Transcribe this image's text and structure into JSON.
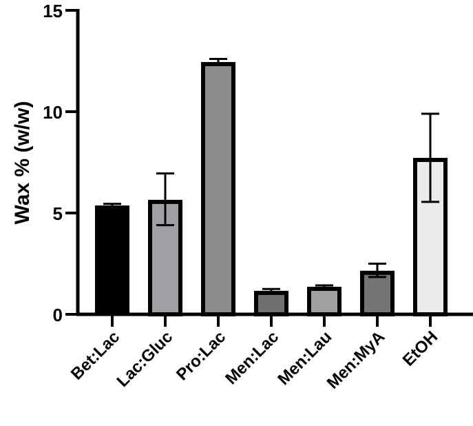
{
  "chart_data": {
    "type": "bar",
    "title": "",
    "xlabel": "",
    "ylabel": "Wax % (w/w)",
    "ylim": [
      0,
      15
    ],
    "yticks": [
      0,
      5,
      10,
      15
    ],
    "grid": false,
    "legend": null,
    "categories": [
      "Bet:Lac",
      "Lac:Gluc",
      "Pro:Lac",
      "Men:Lac",
      "Men:Lau",
      "Men:MyA",
      "EtOH"
    ],
    "values": [
      5.37,
      5.65,
      12.45,
      1.16,
      1.36,
      2.15,
      7.72
    ],
    "error_upper": [
      5.45,
      6.95,
      12.6,
      1.25,
      1.43,
      2.5,
      9.9
    ],
    "error_lower": [
      null,
      4.4,
      null,
      null,
      null,
      1.84,
      5.55
    ],
    "colors": [
      "#000000",
      "#a0a0a4",
      "#8c8c8c",
      "#707070",
      "#a0a0a0",
      "#757575",
      "#ebebeb"
    ]
  }
}
